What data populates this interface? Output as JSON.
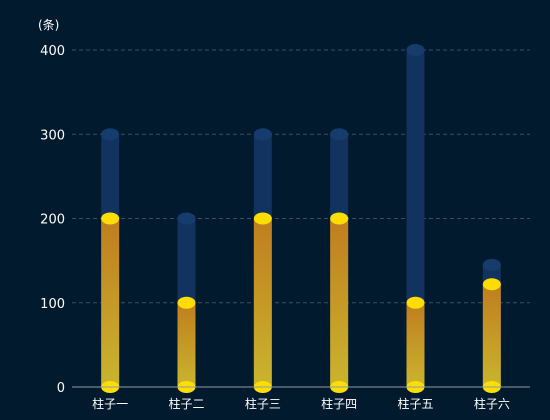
{
  "chart_data": {
    "type": "bar",
    "unit_label": "(条)",
    "categories": [
      "柱子一",
      "柱子二",
      "柱子三",
      "柱子四",
      "柱子五",
      "柱子六"
    ],
    "y_ticks": [
      "0",
      "100",
      "200",
      "300",
      "400"
    ],
    "ylim": [
      0,
      400
    ],
    "grid": true,
    "series": [
      {
        "values": [
          300,
          200,
          300,
          300,
          400,
          145
        ]
      },
      {
        "values": [
          200,
          100,
          200,
          200,
          100,
          122
        ]
      }
    ],
    "colors": {
      "background": "#011a2e",
      "background_bar": "#12335f",
      "background_bar_cap": "#163c6e",
      "value_bar_top": "#c07d1f",
      "value_bar_bottom": "#c9b52e",
      "value_cap": "#ffdd00",
      "grid": "#3c4f63",
      "axis": "#8a9aa8",
      "text": "#ffffff"
    }
  }
}
